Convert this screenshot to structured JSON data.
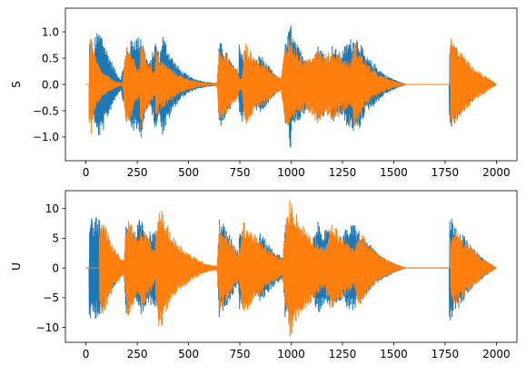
{
  "chart_data": [
    {
      "type": "line",
      "ylabel": "S",
      "xlabel": "",
      "xlim": [
        -100,
        2100
      ],
      "ylim": [
        -1.45,
        1.45
      ],
      "xticks": [
        0,
        250,
        500,
        750,
        1000,
        1250,
        1500,
        1750,
        2000
      ],
      "yticks": [
        -1.0,
        -0.5,
        0.0,
        0.5,
        1.0
      ],
      "ytick_labels": [
        "−1.0",
        "−0.5",
        "0.0",
        "0.5",
        "1.0"
      ],
      "grid": false,
      "series": [
        {
          "color": "#1f77b4",
          "envelope": [
            [
              0,
              0.0
            ],
            [
              15,
              0.0
            ],
            [
              16,
              0.85
            ],
            [
              40,
              0.55
            ],
            [
              44,
              0.95
            ],
            [
              70,
              1.02
            ],
            [
              80,
              0.95
            ],
            [
              100,
              0.7
            ],
            [
              120,
              0.5
            ],
            [
              145,
              0.25
            ],
            [
              170,
              0.1
            ],
            [
              195,
              0.6
            ],
            [
              220,
              0.85
            ],
            [
              240,
              0.95
            ],
            [
              262,
              0.9
            ],
            [
              268,
              1.02
            ],
            [
              290,
              0.6
            ],
            [
              310,
              0.4
            ],
            [
              340,
              0.85
            ],
            [
              360,
              0.55
            ],
            [
              372,
              1.0
            ],
            [
              400,
              0.7
            ],
            [
              430,
              0.45
            ],
            [
              470,
              0.25
            ],
            [
              520,
              0.12
            ],
            [
              580,
              0.05
            ],
            [
              630,
              0.02
            ],
            [
              640,
              0.05
            ],
            [
              650,
              0.85
            ],
            [
              680,
              0.65
            ],
            [
              720,
              0.35
            ],
            [
              745,
              0.22
            ],
            [
              746,
              0.8
            ],
            [
              760,
              0.72
            ],
            [
              775,
              0.3
            ],
            [
              820,
              0.4
            ],
            [
              850,
              0.6
            ],
            [
              880,
              0.4
            ],
            [
              930,
              0.15
            ],
            [
              960,
              0.1
            ],
            [
              970,
              0.75
            ],
            [
              990,
              1.05
            ],
            [
              995,
              1.3
            ],
            [
              1005,
              0.95
            ],
            [
              1030,
              0.75
            ],
            [
              1070,
              0.55
            ],
            [
              1100,
              0.35
            ],
            [
              1130,
              0.75
            ],
            [
              1155,
              0.65
            ],
            [
              1185,
              0.45
            ],
            [
              1200,
              0.75
            ],
            [
              1240,
              0.6
            ],
            [
              1280,
              0.85
            ],
            [
              1310,
              0.92
            ],
            [
              1330,
              0.9
            ],
            [
              1360,
              0.55
            ],
            [
              1400,
              0.42
            ],
            [
              1460,
              0.18
            ],
            [
              1520,
              0.06
            ],
            [
              1560,
              0.0
            ],
            [
              1770,
              0.0
            ],
            [
              1771,
              0.85
            ],
            [
              1790,
              0.78
            ],
            [
              1830,
              0.55
            ],
            [
              1880,
              0.3
            ],
            [
              1940,
              0.12
            ],
            [
              1990,
              0.04
            ],
            [
              2000,
              0.0
            ]
          ]
        },
        {
          "color": "#ff7f0e",
          "envelope": [
            [
              0,
              0.0
            ],
            [
              15,
              0.0
            ],
            [
              16,
              0.75
            ],
            [
              25,
              0.98
            ],
            [
              45,
              0.55
            ],
            [
              75,
              0.25
            ],
            [
              120,
              0.12
            ],
            [
              150,
              0.05
            ],
            [
              175,
              0.02
            ],
            [
              180,
              0.05
            ],
            [
              190,
              0.6
            ],
            [
              205,
              0.85
            ],
            [
              240,
              0.4
            ],
            [
              262,
              0.25
            ],
            [
              268,
              0.98
            ],
            [
              290,
              0.55
            ],
            [
              320,
              0.35
            ],
            [
              338,
              0.2
            ],
            [
              340,
              0.75
            ],
            [
              360,
              0.5
            ],
            [
              400,
              0.35
            ],
            [
              450,
              0.2
            ],
            [
              500,
              0.1
            ],
            [
              560,
              0.04
            ],
            [
              620,
              0.01
            ],
            [
              640,
              0.05
            ],
            [
              650,
              0.8
            ],
            [
              680,
              0.6
            ],
            [
              720,
              0.35
            ],
            [
              740,
              0.3
            ],
            [
              745,
              0.15
            ],
            [
              760,
              0.1
            ],
            [
              775,
              0.85
            ],
            [
              790,
              0.7
            ],
            [
              830,
              0.5
            ],
            [
              880,
              0.35
            ],
            [
              950,
              0.1
            ],
            [
              970,
              0.75
            ],
            [
              990,
              0.95
            ],
            [
              1030,
              0.6
            ],
            [
              1070,
              0.45
            ],
            [
              1130,
              0.75
            ],
            [
              1160,
              0.55
            ],
            [
              1200,
              0.65
            ],
            [
              1240,
              0.55
            ],
            [
              1290,
              0.4
            ],
            [
              1310,
              0.85
            ],
            [
              1330,
              0.65
            ],
            [
              1380,
              0.35
            ],
            [
              1430,
              0.18
            ],
            [
              1500,
              0.06
            ],
            [
              1560,
              0.0
            ],
            [
              1775,
              0.0
            ],
            [
              1776,
              0.9
            ],
            [
              1800,
              0.75
            ],
            [
              1840,
              0.55
            ],
            [
              1880,
              0.35
            ],
            [
              1940,
              0.18
            ],
            [
              2000,
              0.0
            ]
          ]
        }
      ]
    },
    {
      "type": "line",
      "ylabel": "U",
      "xlabel": "",
      "xlim": [
        -100,
        2100
      ],
      "ylim": [
        -12.5,
        13.0
      ],
      "xticks": [
        0,
        250,
        500,
        750,
        1000,
        1250,
        1500,
        1750,
        2000
      ],
      "yticks": [
        -10,
        -5,
        0,
        5,
        10
      ],
      "ytick_labels": [
        "−10",
        "−5",
        "0",
        "5",
        "10"
      ],
      "grid": false,
      "series": [
        {
          "color": "#1f77b4",
          "envelope": [
            [
              0,
              0.0
            ],
            [
              15,
              0.0
            ],
            [
              16,
              9.2
            ],
            [
              40,
              7.5
            ],
            [
              44,
              8.8
            ],
            [
              70,
              8.0
            ],
            [
              100,
              5.5
            ],
            [
              130,
              3.5
            ],
            [
              160,
              1.8
            ],
            [
              185,
              0.8
            ],
            [
              195,
              7.8
            ],
            [
              220,
              6.5
            ],
            [
              240,
              6.0
            ],
            [
              268,
              9.0
            ],
            [
              300,
              6.0
            ],
            [
              340,
              6.5
            ],
            [
              370,
              4.5
            ],
            [
              400,
              3.5
            ],
            [
              450,
              2.2
            ],
            [
              500,
              1.2
            ],
            [
              560,
              0.6
            ],
            [
              620,
              0.2
            ],
            [
              640,
              0.4
            ],
            [
              650,
              8.8
            ],
            [
              680,
              6.8
            ],
            [
              720,
              4.2
            ],
            [
              745,
              2.6
            ],
            [
              746,
              7.2
            ],
            [
              770,
              5.5
            ],
            [
              820,
              4.0
            ],
            [
              850,
              6.0
            ],
            [
              880,
              4.5
            ],
            [
              930,
              2.5
            ],
            [
              960,
              1.8
            ],
            [
              970,
              8.5
            ],
            [
              990,
              7.0
            ],
            [
              1030,
              6.5
            ],
            [
              1070,
              5.5
            ],
            [
              1100,
              4.0
            ],
            [
              1130,
              7.8
            ],
            [
              1160,
              6.5
            ],
            [
              1200,
              6.0
            ],
            [
              1240,
              5.5
            ],
            [
              1280,
              7.0
            ],
            [
              1310,
              7.5
            ],
            [
              1330,
              6.0
            ],
            [
              1380,
              4.0
            ],
            [
              1430,
              2.2
            ],
            [
              1500,
              0.8
            ],
            [
              1560,
              0.0
            ],
            [
              1770,
              0.0
            ],
            [
              1771,
              9.2
            ],
            [
              1790,
              8.2
            ],
            [
              1830,
              6.0
            ],
            [
              1880,
              3.5
            ],
            [
              1940,
              1.5
            ],
            [
              2000,
              0.0
            ]
          ]
        },
        {
          "color": "#ff7f0e",
          "envelope": [
            [
              0,
              0.0
            ],
            [
              65,
              0.0
            ],
            [
              66,
              5.5
            ],
            [
              80,
              8.7
            ],
            [
              100,
              6.5
            ],
            [
              130,
              4.0
            ],
            [
              160,
              2.2
            ],
            [
              185,
              1.2
            ],
            [
              195,
              6.5
            ],
            [
              210,
              8.8
            ],
            [
              240,
              5.8
            ],
            [
              262,
              4.5
            ],
            [
              268,
              7.5
            ],
            [
              290,
              6.0
            ],
            [
              320,
              4.0
            ],
            [
              338,
              2.5
            ],
            [
              340,
              6.5
            ],
            [
              360,
              10.8
            ],
            [
              380,
              8.5
            ],
            [
              420,
              5.5
            ],
            [
              470,
              3.5
            ],
            [
              520,
              2.0
            ],
            [
              580,
              0.8
            ],
            [
              630,
              0.3
            ],
            [
              640,
              0.5
            ],
            [
              650,
              7.5
            ],
            [
              680,
              6.0
            ],
            [
              720,
              3.8
            ],
            [
              745,
              2.0
            ],
            [
              760,
              6.5
            ],
            [
              770,
              8.0
            ],
            [
              800,
              6.5
            ],
            [
              850,
              4.5
            ],
            [
              900,
              2.8
            ],
            [
              960,
              1.5
            ],
            [
              970,
              7.0
            ],
            [
              985,
              9.5
            ],
            [
              995,
              12.0
            ],
            [
              1010,
              10.5
            ],
            [
              1040,
              8.0
            ],
            [
              1080,
              6.5
            ],
            [
              1120,
              4.8
            ],
            [
              1160,
              3.2
            ],
            [
              1200,
              8.0
            ],
            [
              1230,
              6.0
            ],
            [
              1270,
              4.5
            ],
            [
              1310,
              3.0
            ],
            [
              1330,
              6.5
            ],
            [
              1360,
              5.0
            ],
            [
              1400,
              3.2
            ],
            [
              1450,
              1.8
            ],
            [
              1510,
              0.6
            ],
            [
              1560,
              0.0
            ],
            [
              1775,
              0.0
            ],
            [
              1776,
              5.0
            ],
            [
              1800,
              6.5
            ],
            [
              1840,
              5.0
            ],
            [
              1880,
              3.5
            ],
            [
              1940,
              1.5
            ],
            [
              2000,
              0.0
            ]
          ]
        }
      ]
    }
  ]
}
